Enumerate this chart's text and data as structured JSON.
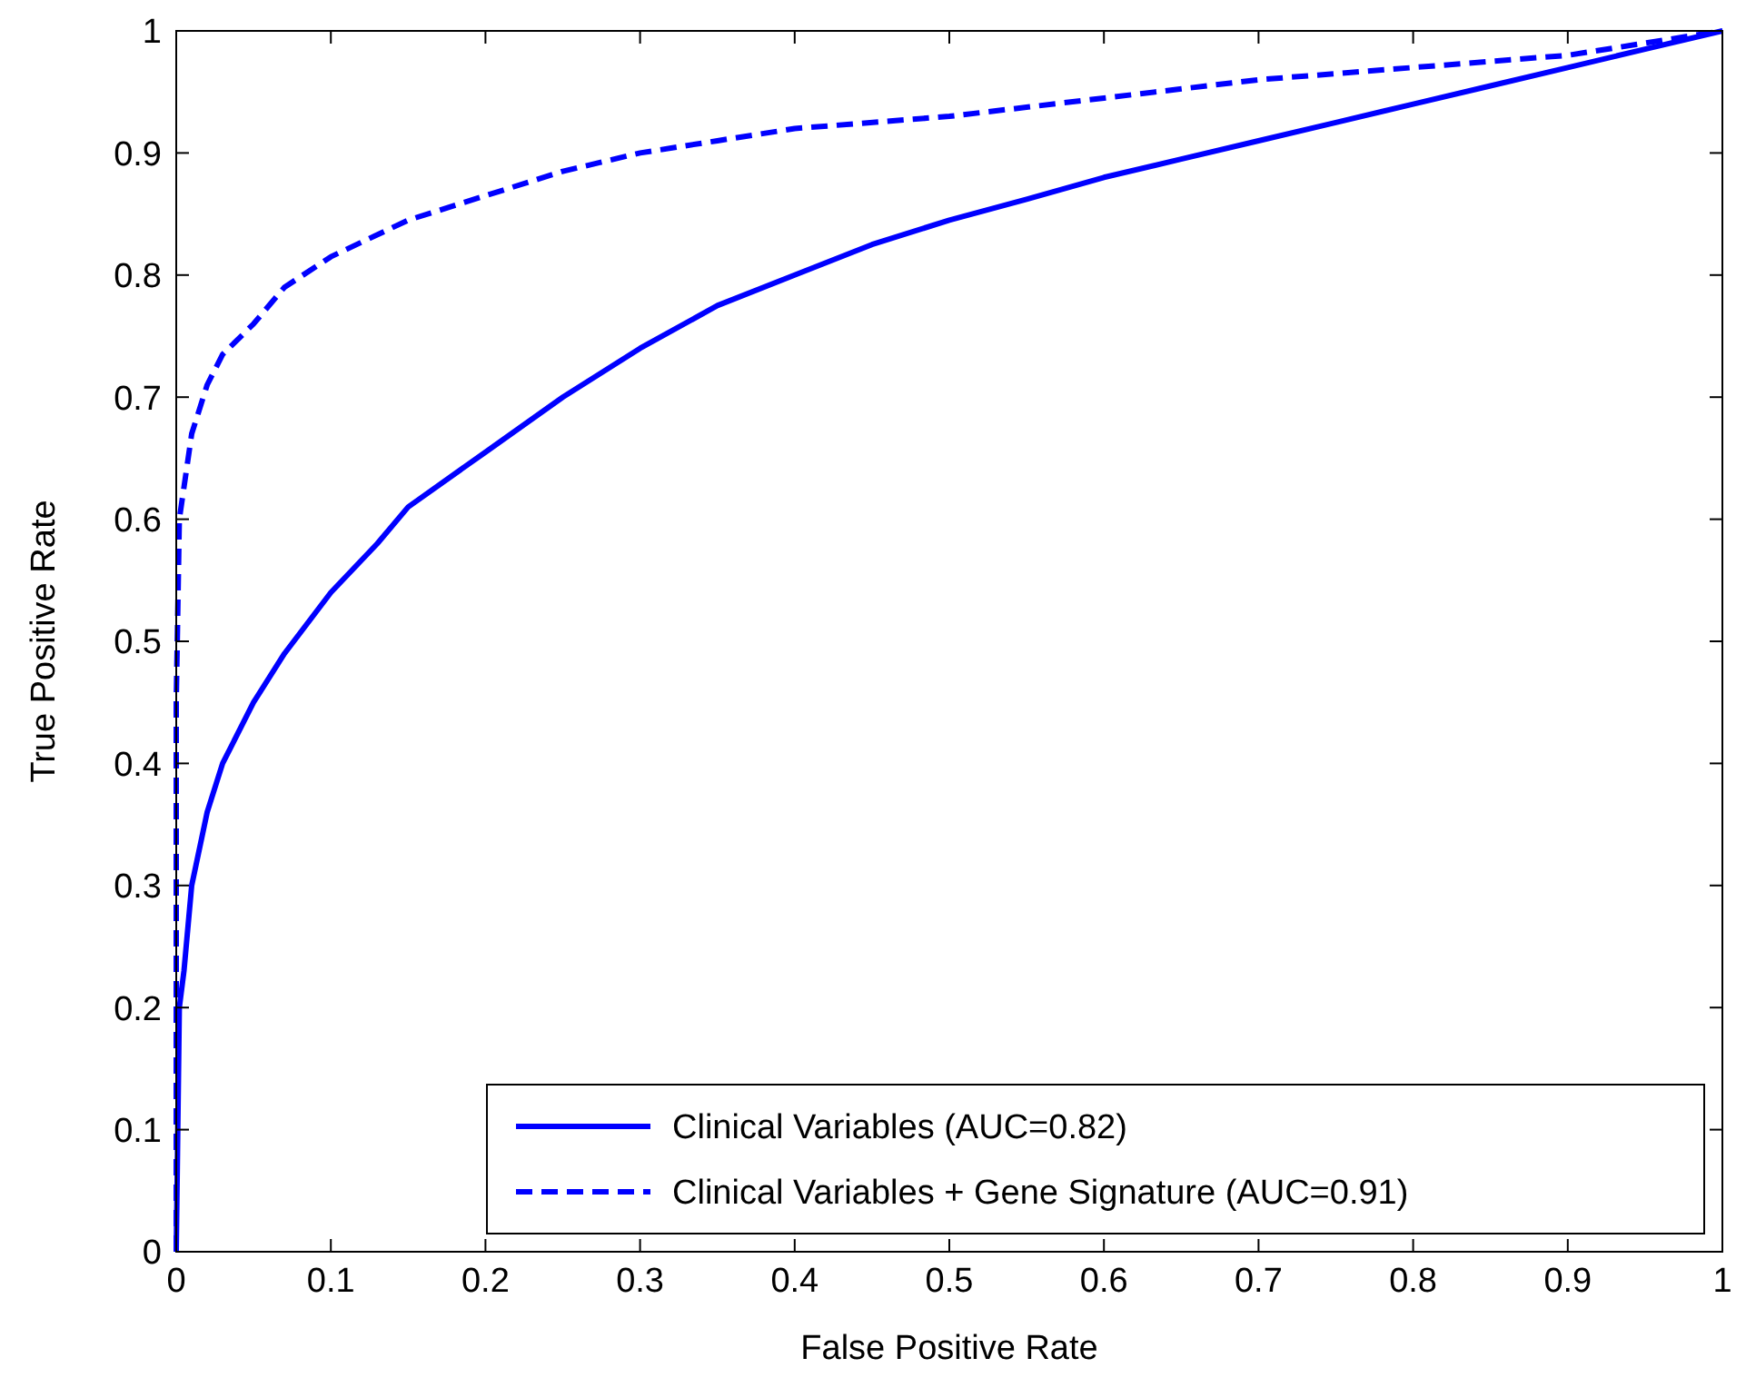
{
  "chart_data": {
    "type": "line",
    "xlabel": "False Positive Rate",
    "ylabel": "True Positive Rate",
    "xlim": [
      0,
      1
    ],
    "ylim": [
      0,
      1
    ],
    "xticks": [
      0,
      0.1,
      0.2,
      0.3,
      0.4,
      0.5,
      0.6,
      0.7,
      0.8,
      0.9,
      1
    ],
    "yticks": [
      0,
      0.1,
      0.2,
      0.3,
      0.4,
      0.5,
      0.6,
      0.7,
      0.8,
      0.9,
      1
    ],
    "grid": false,
    "legend": "bottom right",
    "series": [
      {
        "name": "Clinical Variables (AUC=0.82)",
        "color": "#0000ff",
        "line_style": "solid",
        "x": [
          0,
          0.002,
          0.005,
          0.01,
          0.02,
          0.03,
          0.05,
          0.07,
          0.1,
          0.13,
          0.15,
          0.2,
          0.25,
          0.3,
          0.35,
          0.4,
          0.45,
          0.5,
          0.55,
          0.6,
          0.65,
          0.7,
          0.75,
          0.8,
          0.85,
          0.9,
          0.95,
          1
        ],
        "values": [
          0,
          0.2,
          0.23,
          0.3,
          0.36,
          0.4,
          0.45,
          0.49,
          0.54,
          0.58,
          0.61,
          0.655,
          0.7,
          0.74,
          0.775,
          0.8,
          0.825,
          0.845,
          0.862,
          0.88,
          0.895,
          0.91,
          0.925,
          0.94,
          0.955,
          0.97,
          0.985,
          1
        ]
      },
      {
        "name": "Clinical Variables + Gene Signature (AUC=0.91)",
        "color": "#0000ff",
        "line_style": "dashed",
        "x": [
          0,
          0,
          0.002,
          0.01,
          0.02,
          0.03,
          0.05,
          0.07,
          0.1,
          0.15,
          0.2,
          0.25,
          0.3,
          0.35,
          0.4,
          0.5,
          0.6,
          0.7,
          0.8,
          0.9,
          0.95,
          1
        ],
        "values": [
          0,
          0.45,
          0.6,
          0.67,
          0.71,
          0.735,
          0.76,
          0.79,
          0.815,
          0.845,
          0.865,
          0.885,
          0.9,
          0.91,
          0.92,
          0.93,
          0.945,
          0.96,
          0.97,
          0.98,
          0.99,
          1
        ]
      }
    ]
  }
}
